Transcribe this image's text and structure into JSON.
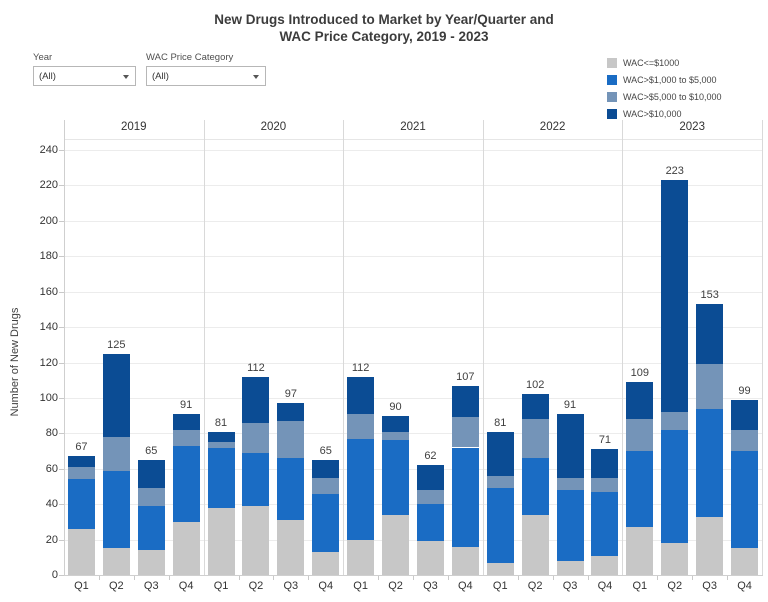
{
  "title": {
    "line1": "New Drugs Introduced to Market by Year/Quarter and",
    "line2": "WAC Price Category, 2019 - 2023"
  },
  "filters": [
    {
      "label": "Year",
      "value": "(All)"
    },
    {
      "label": "WAC Price Category",
      "value": "(All)"
    }
  ],
  "chart_data": {
    "type": "bar",
    "stacked": true,
    "title": "New Drugs Introduced to Market by Year/Quarter and WAC Price Category, 2019 - 2023",
    "xlabel": "",
    "ylabel": "Number of New Drugs",
    "ylim": [
      0,
      240
    ],
    "ytick_step": 20,
    "grid": true,
    "legend_position": "top-right",
    "years": [
      "2019",
      "2020",
      "2021",
      "2022",
      "2023"
    ],
    "quarters": [
      "Q1",
      "Q2",
      "Q3",
      "Q4"
    ],
    "categories": [
      "2019 Q1",
      "2019 Q2",
      "2019 Q3",
      "2019 Q4",
      "2020 Q1",
      "2020 Q2",
      "2020 Q3",
      "2020 Q4",
      "2021 Q1",
      "2021 Q2",
      "2021 Q3",
      "2021 Q4",
      "2022 Q1",
      "2022 Q2",
      "2022 Q3",
      "2022 Q4",
      "2023 Q1",
      "2023 Q2",
      "2023 Q3",
      "2023 Q4"
    ],
    "series": [
      {
        "name": "WAC<=$1000",
        "color": "#c7c7c7",
        "values": [
          26,
          15,
          14,
          30,
          38,
          39,
          31,
          13,
          20,
          34,
          19,
          16,
          7,
          34,
          8,
          11,
          27,
          18,
          33,
          15
        ]
      },
      {
        "name": "WAC>$1,000 to $5,000",
        "color": "#1a6cc4",
        "values": [
          28,
          44,
          25,
          43,
          34,
          30,
          35,
          33,
          57,
          42,
          21,
          56,
          42,
          32,
          40,
          36,
          43,
          64,
          61,
          55
        ]
      },
      {
        "name": "WAC>$5,000 to $10,000",
        "color": "#7494b8",
        "values": [
          7,
          19,
          10,
          9,
          3,
          17,
          21,
          9,
          14,
          5,
          8,
          17,
          7,
          22,
          7,
          8,
          18,
          10,
          25,
          12
        ]
      },
      {
        "name": "WAC>$10,000",
        "color": "#0b4c94",
        "values": [
          6,
          47,
          16,
          9,
          6,
          26,
          10,
          10,
          21,
          9,
          14,
          18,
          25,
          14,
          36,
          16,
          21,
          131,
          34,
          17
        ]
      }
    ],
    "totals": [
      67,
      125,
      65,
      91,
      81,
      112,
      97,
      65,
      112,
      90,
      62,
      107,
      81,
      102,
      91,
      71,
      109,
      223,
      153,
      99
    ]
  }
}
